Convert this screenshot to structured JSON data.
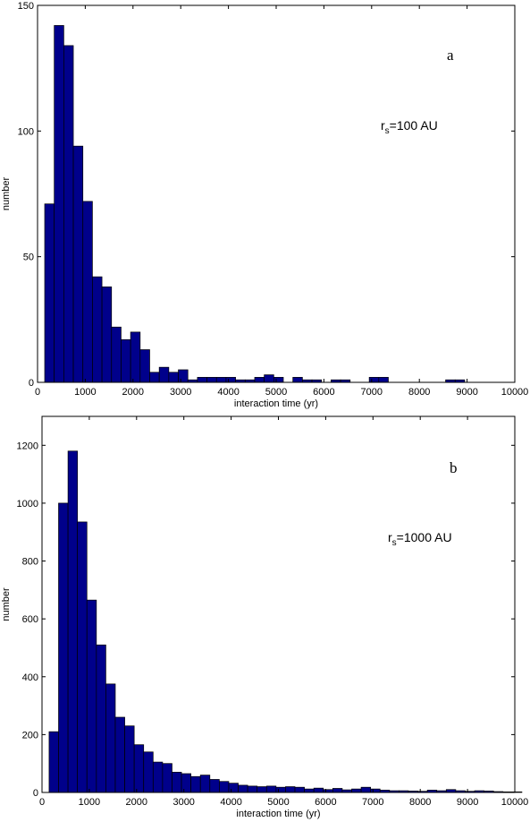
{
  "colors": {
    "bar_fill": "#00008b"
  },
  "chart_data": [
    {
      "type": "bar",
      "panel_letter": "a",
      "annotation": {
        "base": "r",
        "sub": "s",
        "rest": "=100 AU"
      },
      "xlabel": "interaction time (yr)",
      "ylabel": "number",
      "xlim": [
        0,
        10000
      ],
      "ylim": [
        0,
        150
      ],
      "xticks": [
        0,
        1000,
        2000,
        3000,
        4000,
        5000,
        6000,
        7000,
        8000,
        9000,
        10000
      ],
      "yticks": [
        0,
        50,
        100,
        150
      ],
      "bin_width": 200,
      "bin_start": 150,
      "values": [
        71,
        142,
        134,
        94,
        72,
        42,
        38,
        22,
        17,
        20,
        13,
        4,
        6,
        4,
        5,
        1,
        2,
        2,
        2,
        2,
        1,
        1,
        2,
        3,
        2,
        0,
        2,
        1,
        1,
        0,
        1,
        1,
        0,
        0,
        2,
        2,
        0,
        0,
        0,
        0,
        0,
        0,
        1,
        1,
        0,
        0,
        0,
        0,
        0,
        0
      ]
    },
    {
      "type": "bar",
      "panel_letter": "b",
      "annotation": {
        "base": "r",
        "sub": "s",
        "rest": "=1000 AU"
      },
      "xlabel": "interaction time (yr)",
      "ylabel": "number",
      "xlim": [
        0,
        10000
      ],
      "ylim": [
        0,
        1300
      ],
      "xticks": [
        0,
        1000,
        2000,
        3000,
        4000,
        5000,
        6000,
        7000,
        8000,
        9000,
        10000
      ],
      "yticks": [
        0,
        200,
        400,
        600,
        800,
        1000,
        1200
      ],
      "bin_width": 200,
      "bin_start": 150,
      "values": [
        210,
        1000,
        1180,
        935,
        665,
        510,
        375,
        260,
        230,
        165,
        140,
        105,
        100,
        70,
        65,
        55,
        60,
        45,
        38,
        32,
        25,
        22,
        20,
        22,
        18,
        20,
        18,
        12,
        15,
        10,
        14,
        9,
        12,
        18,
        12,
        8,
        6,
        6,
        5,
        4,
        8,
        6,
        10,
        6,
        4,
        6,
        5,
        3,
        2,
        2
      ]
    }
  ]
}
